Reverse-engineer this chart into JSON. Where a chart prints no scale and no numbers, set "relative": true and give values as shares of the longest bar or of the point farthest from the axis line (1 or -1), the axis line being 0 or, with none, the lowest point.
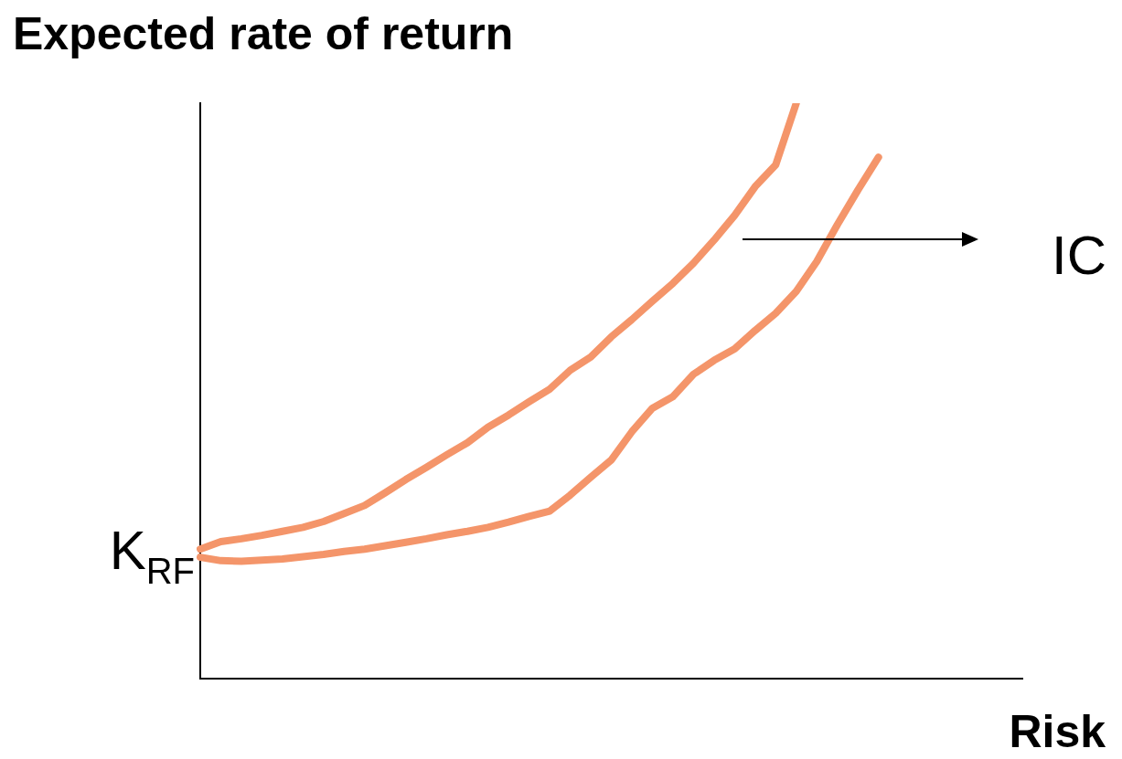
{
  "chart_data": {
    "type": "line",
    "relative": true,
    "xlabel": "Risk",
    "ylabel": "Expected rate of return",
    "legend": false,
    "marker": "none",
    "line_style": "solid",
    "categories": [
      null,
      null,
      null,
      null,
      null,
      null,
      null,
      null,
      null,
      null,
      null,
      null,
      null,
      null,
      null,
      null,
      null,
      null,
      null,
      null,
      null,
      null,
      null,
      null,
      null,
      null,
      null,
      null,
      null,
      null,
      null,
      null,
      null,
      null,
      null,
      null,
      null,
      null,
      null,
      null,
      null
    ],
    "series": [
      {
        "color": "#f4956a",
        "values": [
          0.225,
          0.238,
          0.243,
          0.249,
          0.256,
          0.263,
          0.273,
          0.287,
          0.301,
          0.323,
          0.346,
          0.367,
          0.389,
          0.41,
          0.437,
          0.458,
          0.481,
          0.503,
          0.536,
          0.559,
          0.594,
          0.624,
          0.656,
          0.687,
          0.722,
          0.762,
          0.805,
          0.855,
          0.893,
          1,
          null,
          null,
          null,
          null,
          null,
          null,
          null,
          null,
          null,
          null,
          null
        ]
      },
      {
        "color": "#f4956a",
        "values": [
          0.211,
          0.205,
          0.204,
          0.206,
          0.208,
          0.212,
          0.216,
          0.221,
          0.225,
          0.231,
          0.237,
          0.243,
          0.25,
          0.256,
          0.263,
          0.272,
          0.282,
          0.291,
          0.319,
          0.35,
          0.38,
          0.429,
          0.47,
          0.49,
          0.529,
          0.553,
          0.573,
          0.605,
          0.635,
          0.673,
          0.725,
          0.789,
          0.849,
          0.906,
          null,
          null,
          null,
          null,
          null,
          null,
          null
        ]
      }
    ],
    "annotations": [
      "K$_{RF}$",
      "IC"
    ]
  }
}
